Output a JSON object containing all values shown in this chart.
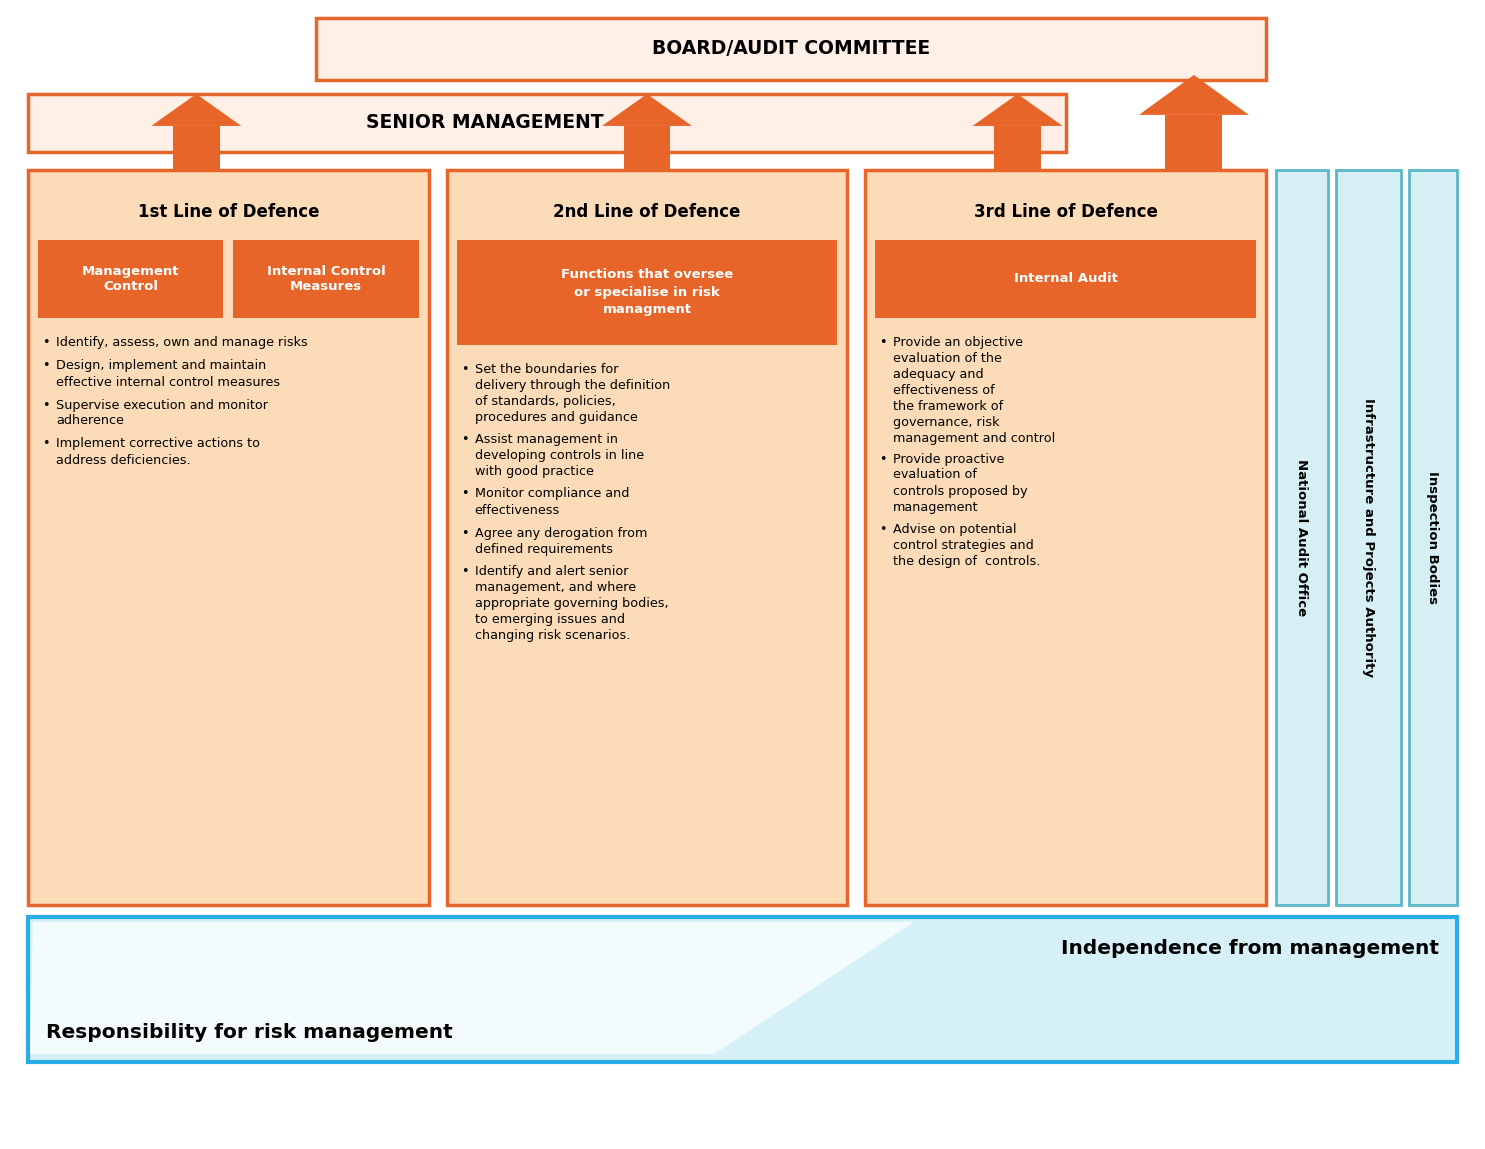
{
  "board_text": "BOARD/AUDIT COMMITTEE",
  "senior_mgmt_text": "SENIOR MANAGEMENT",
  "orange_color": "#E8652A",
  "orange_fill": "#FCDCB8",
  "teal_color": "#5BB8C8",
  "teal_light": "#D6EFF5",
  "blue_border": "#2AACE8",
  "col1_title": "1st Line of Defence",
  "col2_title": "2nd Line of Defence",
  "col3_title": "3rd Line of Defence",
  "col1_box1": "Management\nControl",
  "col1_box2": "Internal Control\nMeasures",
  "col2_box": "Functions that oversee\nor specialise in risk\nmanagment",
  "col3_box": "Internal Audit",
  "col1_bullets": [
    "Identify, assess, own and manage risks",
    "Design, implement and maintain\neffective internal control measures",
    "Supervise execution and monitor\nadherence",
    "Implement corrective actions to\naddress deficiencies."
  ],
  "col2_bullets": [
    "Set the boundaries for\ndelivery through the definition\nof standards, policies,\nprocedures and guidance",
    "Assist management in\ndeveloping controls in line\nwith good practice",
    "Monitor compliance and\neffectiveness",
    "Agree any derogation from\ndefined requirements",
    "Identify and alert senior\nmanagement, and where\nappropriate governing bodies,\nto emerging issues and\nchanging risk scenarios."
  ],
  "col3_bullets": [
    "Provide an objective\nevaluation of the\nadequacy and\neffectiveness of\nthe framework of\ngovernance, risk\nmanagement and control",
    "Provide proactive\nevaluation of\ncontrols proposed by\nmanagement",
    "Advise on potential\ncontrol strategies and\nthe design of  controls."
  ],
  "side1_text": "National Audit Office",
  "side2_text": "Infrastructure and Projects Authority",
  "side3_text": "Inspection Bodies",
  "bottom_left": "Responsibility for risk management",
  "bottom_right": "Independence from management",
  "background": "#FFFFFF"
}
